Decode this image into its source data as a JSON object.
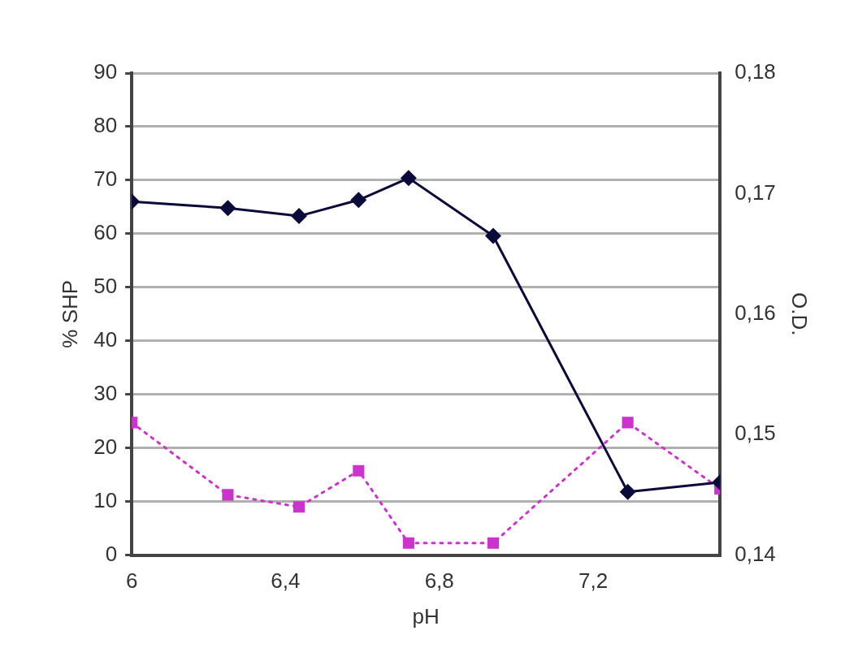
{
  "chart_data": {
    "type": "line",
    "xlabel": "pH",
    "ylabel": "% SHP",
    "y2label": "O.D.",
    "xlim": [
      6,
      7.53
    ],
    "xticks": [
      6,
      {
        "value": 6.4,
        "label": "6,4"
      },
      {
        "value": 6.8,
        "label": "6,8"
      },
      {
        "value": 7.2,
        "label": "7,2"
      }
    ],
    "ylim": [
      0,
      90
    ],
    "yticks": [
      0,
      10,
      20,
      30,
      40,
      50,
      60,
      70,
      80,
      90
    ],
    "y2lim": [
      0.14,
      0.18
    ],
    "y2ticks": [
      {
        "value": 0.14,
        "label": "0,14"
      },
      {
        "value": 0.15,
        "label": "0,15"
      },
      {
        "value": 0.16,
        "label": "0,16"
      },
      {
        "value": 0.17,
        "label": "0,17"
      },
      {
        "value": 0.18,
        "label": "0,18"
      }
    ],
    "grid": "y",
    "legend": false,
    "series": [
      {
        "color": "#0a0a3a",
        "marker": "diamond",
        "line_style": "solid",
        "x": [
          6,
          6.25,
          6.435,
          6.59,
          6.72,
          6.94,
          7.29,
          7.53
        ],
        "values": [
          66,
          64.8,
          63.3,
          66.3,
          70.4,
          59.6,
          11.8,
          13.6
        ]
      },
      {
        "color": "#cc33cc",
        "marker": "square",
        "line_style": "dotted",
        "axis": "y2",
        "x": [
          6,
          6.25,
          6.435,
          6.59,
          6.72,
          6.94,
          7.29,
          7.53
        ],
        "values": [
          0.151,
          0.145,
          0.144,
          0.147,
          0.141,
          0.141,
          0.151,
          0.1455
        ]
      }
    ]
  }
}
